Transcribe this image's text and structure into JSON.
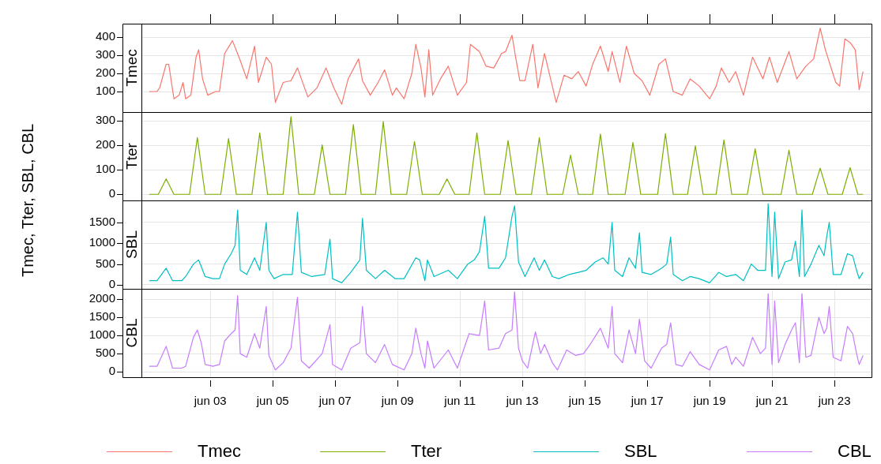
{
  "chart_data": [
    {
      "type": "line",
      "ylabel": "Tmec, Tter, SBL, CBL",
      "legend": "bottom",
      "grid": true,
      "tick_labels": "y",
      "xlim": [
        "--05-31T19:00",
        "--06-24T04:30"
      ],
      "ylim": [
        -13,
        474
      ],
      "yticks": [
        100,
        200,
        300,
        400
      ],
      "xticks": [
        {
          "value": "--06-03",
          "label": null
        },
        {
          "value": "--06-05",
          "label": null
        },
        {
          "value": "--06-07",
          "label": null
        },
        {
          "value": "--06-09",
          "label": null
        },
        {
          "value": "--06-11",
          "label": null
        },
        {
          "value": "--06-13",
          "label": null
        },
        {
          "value": "--06-15",
          "label": null
        },
        {
          "value": "--06-17",
          "label": null
        },
        {
          "value": "--06-19",
          "label": null
        },
        {
          "value": "--06-21",
          "label": null
        },
        {
          "value": "--06-23",
          "label": null
        }
      ],
      "x": [
        "--06-01T01:00",
        "--06-01T07:00",
        "--06-01T09:00",
        "--06-01T14:00",
        "--06-01T16:00",
        "--06-01T20:00",
        "--06-02T00:00",
        "--06-02T03:00",
        "--06-02T05:00",
        "--06-02T09:00",
        "--06-02T13:00",
        "--06-02T15:00",
        "--06-02T18:00",
        "--06-02T22:00",
        "--06-03T04:00",
        "--06-03T07:00",
        "--06-03T11:00",
        "--06-03T17:00",
        "--06-03T22:00",
        "--06-04T04:00",
        "--06-04T10:00",
        "--06-04T13:00",
        "--06-04T19:00",
        "--06-04T23:00",
        "--06-05T02:00",
        "--06-05T08:00",
        "--06-05T14:00",
        "--06-05T19:00",
        "--06-06T03:00",
        "--06-06T10:00",
        "--06-06T17:00",
        "--06-06T23:00",
        "--06-07T05:00",
        "--06-07T10:00",
        "--06-07T18:00",
        "--06-07T21:00",
        "--06-08T03:00",
        "--06-08T09:00",
        "--06-08T14:00",
        "--06-08T20:00",
        "--06-08T23:00",
        "--06-09T05:00",
        "--06-09T11:00",
        "--06-09T14:00",
        "--06-09T18:00",
        "--06-09T21:00",
        "--06-10T00:00",
        "--06-10T03:00",
        "--06-10T09:00",
        "--06-10T15:00",
        "--06-10T22:00",
        "--06-11T05:00",
        "--06-11T08:00",
        "--06-11T15:00",
        "--06-11T20:00",
        "--06-12T02:00",
        "--06-12T08:00",
        "--06-12T11:00",
        "--06-12T16:00",
        "--06-12T19:00",
        "--06-12T22:00",
        "--06-13T02:00",
        "--06-13T08:00",
        "--06-13T12:00",
        "--06-13T17:00",
        "--06-13T23:00",
        "--06-14T02:00",
        "--06-14T08:00",
        "--06-14T14:00",
        "--06-14T19:00",
        "--06-15T01:00",
        "--06-15T06:00",
        "--06-15T12:00",
        "--06-15T18:00",
        "--06-15T21:00",
        "--06-16T03:00",
        "--06-16T08:00",
        "--06-16T14:00",
        "--06-16T20:00",
        "--06-17T02:00",
        "--06-17T09:00",
        "--06-17T14:00",
        "--06-17T20:00",
        "--06-18T03:00",
        "--06-18T09:00",
        "--06-18T16:00",
        "--06-19T00:00",
        "--06-19T05:00",
        "--06-19T09:00",
        "--06-19T15:00",
        "--06-19T20:00",
        "--06-20T02:00",
        "--06-20T09:00",
        "--06-20T17:00",
        "--06-20T22:00",
        "--06-21T04:00",
        "--06-21T13:00",
        "--06-21T19:00",
        "--06-22T02:00",
        "--06-22T08:00",
        "--06-22T13:00",
        "--06-22T17:00",
        "--06-23T01:00",
        "--06-23T04:00",
        "--06-23T08:00",
        "--06-23T12:00",
        "--06-23T16:00",
        "--06-23T19:00",
        "--06-23T22:00"
      ],
      "series": [
        {
          "name": "Tmec",
          "color": "#f8766d",
          "values": [
            100,
            100,
            120,
            250,
            250,
            60,
            80,
            150,
            60,
            80,
            290,
            330,
            170,
            80,
            100,
            100,
            310,
            380,
            290,
            170,
            350,
            150,
            290,
            250,
            40,
            150,
            160,
            230,
            70,
            120,
            230,
            120,
            30,
            170,
            280,
            160,
            80,
            150,
            220,
            80,
            120,
            60,
            200,
            360,
            230,
            70,
            330,
            80,
            170,
            240,
            80,
            150,
            360,
            320,
            240,
            230,
            310,
            320,
            410,
            280,
            160,
            160,
            360,
            120,
            310,
            130,
            40,
            190,
            170,
            210,
            130,
            250,
            350,
            210,
            320,
            150,
            350,
            200,
            160,
            80,
            250,
            280,
            100,
            80,
            170,
            130,
            60,
            130,
            230,
            150,
            210,
            80,
            290,
            170,
            290,
            150,
            320,
            170,
            240,
            280,
            450,
            330,
            150,
            130,
            390,
            370,
            330,
            110,
            210
          ]
        }
      ]
    },
    {
      "type": "line",
      "legend": "bottom",
      "grid": true,
      "tick_labels": "y",
      "xlim": [
        "--05-31T19:00",
        "--06-24T04:30"
      ],
      "ylim": [
        -25,
        336
      ],
      "yticks": [
        0,
        100,
        200,
        300
      ],
      "xticks": [
        {
          "value": "--06-03",
          "label": null
        },
        {
          "value": "--06-05",
          "label": null
        },
        {
          "value": "--06-07",
          "label": null
        },
        {
          "value": "--06-09",
          "label": null
        },
        {
          "value": "--06-11",
          "label": null
        },
        {
          "value": "--06-13",
          "label": null
        },
        {
          "value": "--06-15",
          "label": null
        },
        {
          "value": "--06-17",
          "label": null
        },
        {
          "value": "--06-19",
          "label": null
        },
        {
          "value": "--06-21",
          "label": null
        },
        {
          "value": "--06-23",
          "label": null
        }
      ],
      "x": [
        "--06-01T01:00",
        "--06-01T08:00",
        "--06-01T14:00",
        "--06-01T20:00",
        "--06-02T08:00",
        "--06-02T14:00",
        "--06-02T20:00",
        "--06-03T08:00",
        "--06-03T14:00",
        "--06-03T20:00",
        "--06-04T08:00",
        "--06-04T14:00",
        "--06-04T20:00",
        "--06-05T08:00",
        "--06-05T14:00",
        "--06-05T20:00",
        "--06-06T08:00",
        "--06-06T14:00",
        "--06-06T20:00",
        "--06-07T08:00",
        "--06-07T14:00",
        "--06-07T20:00",
        "--06-08T07:00",
        "--06-08T13:00",
        "--06-08T19:00",
        "--06-09T07:00",
        "--06-09T13:00",
        "--06-09T19:00",
        "--06-10T08:00",
        "--06-10T14:00",
        "--06-10T20:00",
        "--06-11T07:00",
        "--06-11T13:00",
        "--06-11T19:00",
        "--06-12T07:00",
        "--06-12T13:00",
        "--06-12T19:00",
        "--06-13T07:00",
        "--06-13T13:00",
        "--06-13T19:00",
        "--06-14T07:00",
        "--06-14T13:00",
        "--06-14T19:00",
        "--06-15T06:00",
        "--06-15T12:00",
        "--06-15T18:00",
        "--06-16T07:00",
        "--06-16T13:00",
        "--06-16T19:00",
        "--06-17T08:00",
        "--06-17T14:00",
        "--06-17T20:00",
        "--06-18T07:00",
        "--06-18T13:00",
        "--06-18T19:00",
        "--06-19T05:00",
        "--06-19T11:00",
        "--06-19T17:00",
        "--06-20T05:00",
        "--06-20T11:00",
        "--06-20T17:00",
        "--06-21T07:00",
        "--06-21T13:00",
        "--06-21T19:00",
        "--06-22T07:00",
        "--06-22T13:00",
        "--06-22T19:00",
        "--06-23T06:00",
        "--06-23T12:00",
        "--06-23T18:00",
        "--06-23T22:00"
      ],
      "series": [
        {
          "name": "Tter",
          "color": "#7cae00",
          "values": [
            0,
            0,
            63,
            0,
            0,
            232,
            0,
            0,
            228,
            0,
            0,
            251,
            0,
            0,
            317,
            0,
            0,
            202,
            0,
            0,
            285,
            0,
            0,
            297,
            0,
            0,
            216,
            0,
            0,
            63,
            0,
            0,
            251,
            0,
            0,
            220,
            0,
            0,
            232,
            0,
            0,
            160,
            0,
            0,
            246,
            0,
            0,
            212,
            0,
            0,
            248,
            0,
            0,
            198,
            0,
            0,
            222,
            0,
            0,
            186,
            0,
            0,
            180,
            0,
            0,
            107,
            0,
            0,
            109,
            0,
            0
          ]
        }
      ]
    },
    {
      "type": "line",
      "legend": "bottom",
      "grid": true,
      "tick_labels": "y",
      "xlim": [
        "--05-31T19:00",
        "--06-24T04:30"
      ],
      "ylim": [
        -95,
        2030
      ],
      "yticks": [
        0,
        500,
        1000,
        1500
      ],
      "xticks": [
        {
          "value": "--06-03",
          "label": null
        },
        {
          "value": "--06-05",
          "label": null
        },
        {
          "value": "--06-07",
          "label": null
        },
        {
          "value": "--06-09",
          "label": null
        },
        {
          "value": "--06-11",
          "label": null
        },
        {
          "value": "--06-13",
          "label": null
        },
        {
          "value": "--06-15",
          "label": null
        },
        {
          "value": "--06-17",
          "label": null
        },
        {
          "value": "--06-19",
          "label": null
        },
        {
          "value": "--06-21",
          "label": null
        },
        {
          "value": "--06-23",
          "label": null
        }
      ],
      "x": [
        "--06-01T01:00",
        "--06-01T07:00",
        "--06-01T14:00",
        "--06-01T19:00",
        "--06-02T02:00",
        "--06-02T05:00",
        "--06-02T11:00",
        "--06-02T15:00",
        "--06-02T20:00",
        "--06-03T02:00",
        "--06-03T07:00",
        "--06-03T11:00",
        "--06-03T16:00",
        "--06-03T19:00",
        "--06-03T21:00",
        "--06-03T23:00",
        "--06-04T04:00",
        "--06-04T10:00",
        "--06-04T14:00",
        "--06-04T19:00",
        "--06-04T21:00",
        "--06-05T01:00",
        "--06-05T08:00",
        "--06-05T15:00",
        "--06-05T19:00",
        "--06-05T22:00",
        "--06-06T06:00",
        "--06-06T16:00",
        "--06-06T20:00",
        "--06-06T22:00",
        "--06-07T05:00",
        "--06-07T12:00",
        "--06-07T19:00",
        "--06-07T21:00",
        "--06-08T00:00",
        "--06-08T07:00",
        "--06-08T14:00",
        "--06-08T22:00",
        "--06-09T05:00",
        "--06-09T14:00",
        "--06-09T17:00",
        "--06-09T21:00",
        "--06-09T23:00",
        "--06-10T04:00",
        "--06-10T15:00",
        "--06-10T22:00",
        "--06-11T06:00",
        "--06-11T11:00",
        "--06-11T15:00",
        "--06-11T19:00",
        "--06-11T22:00",
        "--06-12T06:00",
        "--06-12T11:00",
        "--06-12T16:00",
        "--06-12T18:00",
        "--06-12T21:00",
        "--06-13T02:00",
        "--06-13T09:00",
        "--06-13T13:00",
        "--06-13T17:00",
        "--06-13T23:00",
        "--06-14T04:00",
        "--06-14T12:00",
        "--06-14T19:00",
        "--06-15T01:00",
        "--06-15T08:00",
        "--06-15T14:00",
        "--06-15T18:00",
        "--06-15T21:00",
        "--06-15T23:00",
        "--06-16T05:00",
        "--06-16T10:00",
        "--06-16T15:00",
        "--06-16T18:00",
        "--06-16T20:00",
        "--06-17T03:00",
        "--06-17T11:00",
        "--06-17T15:00",
        "--06-17T18:00",
        "--06-17T20:00",
        "--06-18T03:00",
        "--06-18T09:00",
        "--06-18T16:00",
        "--06-19T00:00",
        "--06-19T07:00",
        "--06-19T13:00",
        "--06-19T20:00",
        "--06-20T02:00",
        "--06-20T08:00",
        "--06-20T13:00",
        "--06-20T19:00",
        "--06-20T21:00",
        "--06-21T00:00",
        "--06-21T02:00",
        "--06-21T05:00",
        "--06-21T10:00",
        "--06-21T15:00",
        "--06-21T18:00",
        "--06-21T21:00",
        "--06-21T23:00",
        "--06-22T01:00",
        "--06-22T06:00",
        "--06-22T12:00",
        "--06-22T16:00",
        "--06-22T18:00",
        "--06-22T20:00",
        "--06-22T23:00",
        "--06-23T05:00",
        "--06-23T10:00",
        "--06-23T14:00",
        "--06-23T17:00",
        "--06-23T19:00",
        "--06-23T22:00"
      ],
      "series": [
        {
          "name": "SBL",
          "color": "#00bfc4",
          "values": [
            100,
            100,
            400,
            100,
            100,
            200,
            500,
            600,
            200,
            150,
            150,
            500,
            750,
            950,
            1800,
            350,
            250,
            650,
            350,
            1500,
            350,
            150,
            250,
            250,
            1750,
            300,
            200,
            250,
            1100,
            150,
            50,
            300,
            600,
            1600,
            350,
            150,
            350,
            150,
            150,
            650,
            600,
            100,
            600,
            200,
            350,
            150,
            500,
            600,
            800,
            1650,
            400,
            400,
            650,
            1650,
            1900,
            550,
            200,
            650,
            350,
            600,
            200,
            150,
            250,
            300,
            350,
            550,
            650,
            500,
            1500,
            350,
            200,
            650,
            400,
            1250,
            300,
            250,
            400,
            500,
            1150,
            250,
            100,
            200,
            150,
            50,
            300,
            200,
            250,
            100,
            500,
            350,
            350,
            1950,
            200,
            1750,
            150,
            550,
            600,
            1050,
            200,
            1800,
            200,
            500,
            950,
            700,
            1150,
            1500,
            250,
            250,
            750,
            700,
            350,
            150,
            300
          ]
        }
      ]
    },
    {
      "type": "line",
      "legend": "bottom",
      "grid": true,
      "xlim": [
        "--05-31T19:00",
        "--06-24T04:30"
      ],
      "ylim": [
        -150,
        2285
      ],
      "yticks": [
        0,
        500,
        1000,
        1500,
        2000
      ],
      "xticks": [
        {
          "value": "--06-03",
          "label": "jun 03"
        },
        {
          "value": "--06-05",
          "label": "jun 05"
        },
        {
          "value": "--06-07",
          "label": "jun 07"
        },
        {
          "value": "--06-09",
          "label": "jun 09"
        },
        {
          "value": "--06-11",
          "label": "jun 11"
        },
        {
          "value": "--06-13",
          "label": "jun 13"
        },
        {
          "value": "--06-15",
          "label": "jun 15"
        },
        {
          "value": "--06-17",
          "label": "jun 17"
        },
        {
          "value": "--06-19",
          "label": "jun 19"
        },
        {
          "value": "--06-21",
          "label": "jun 21"
        },
        {
          "value": "--06-23",
          "label": "jun 23"
        }
      ],
      "x": [
        "--06-01T01:00",
        "--06-01T07:00",
        "--06-01T14:00",
        "--06-01T19:00",
        "--06-02T02:00",
        "--06-02T05:00",
        "--06-02T11:00",
        "--06-02T14:00",
        "--06-02T17:00",
        "--06-02T20:00",
        "--06-03T02:00",
        "--06-03T07:00",
        "--06-03T11:00",
        "--06-03T16:00",
        "--06-03T19:00",
        "--06-03T21:00",
        "--06-03T23:00",
        "--06-04T04:00",
        "--06-04T10:00",
        "--06-04T14:00",
        "--06-04T19:00",
        "--06-04T21:00",
        "--06-05T02:00",
        "--06-05T08:00",
        "--06-05T14:00",
        "--06-05T19:00",
        "--06-05T22:00",
        "--06-06T04:00",
        "--06-06T14:00",
        "--06-06T20:00",
        "--06-06T22:00",
        "--06-07T05:00",
        "--06-07T12:00",
        "--06-07T19:00",
        "--06-07T21:00",
        "--06-08T00:00",
        "--06-08T07:00",
        "--06-08T14:00",
        "--06-08T20:00",
        "--06-09T05:00",
        "--06-09T11:00",
        "--06-09T14:00",
        "--06-09T18:00",
        "--06-09T21:00",
        "--06-09T23:00",
        "--06-10T04:00",
        "--06-10T15:00",
        "--06-10T22:00",
        "--06-11T07:00",
        "--06-11T15:00",
        "--06-11T19:00",
        "--06-11T22:00",
        "--06-12T06:00",
        "--06-12T11:00",
        "--06-12T16:00",
        "--06-12T18:00",
        "--06-12T21:00",
        "--06-13T00:00",
        "--06-13T04:00",
        "--06-13T10:00",
        "--06-13T14:00",
        "--06-13T17:00",
        "--06-13T23:00",
        "--06-14T03:00",
        "--06-14T10:00",
        "--06-14T17:00",
        "--06-14T23:00",
        "--06-15T05:00",
        "--06-15T12:00",
        "--06-15T18:00",
        "--06-15T21:00",
        "--06-15T23:00",
        "--06-16T05:00",
        "--06-16T10:00",
        "--06-16T15:00",
        "--06-16T18:00",
        "--06-16T22:00",
        "--06-17T03:00",
        "--06-17T11:00",
        "--06-17T15:00",
        "--06-17T18:00",
        "--06-17T22:00",
        "--06-18T03:00",
        "--06-18T09:00",
        "--06-18T16:00",
        "--06-19T00:00",
        "--06-19T07:00",
        "--06-19T13:00",
        "--06-19T17:00",
        "--06-19T20:00",
        "--06-20T02:00",
        "--06-20T09:00",
        "--06-20T15:00",
        "--06-20T19:00",
        "--06-20T21:00",
        "--06-21T00:00",
        "--06-21T02:00",
        "--06-21T05:00",
        "--06-21T10:00",
        "--06-21T15:00",
        "--06-21T18:00",
        "--06-21T21:00",
        "--06-21T23:00",
        "--06-22T02:00",
        "--06-22T06:00",
        "--06-22T12:00",
        "--06-22T16:00",
        "--06-22T18:00",
        "--06-22T20:00",
        "--06-22T23:00",
        "--06-23T05:00",
        "--06-23T10:00",
        "--06-23T14:00",
        "--06-23T17:00",
        "--06-23T19:00",
        "--06-23T22:00"
      ],
      "series": [
        {
          "name": "CBL",
          "color": "#c77cff",
          "values": [
            150,
            150,
            700,
            100,
            100,
            150,
            950,
            1150,
            800,
            200,
            150,
            200,
            850,
            1050,
            1150,
            2100,
            500,
            400,
            1050,
            650,
            1800,
            450,
            50,
            250,
            650,
            2050,
            300,
            100,
            500,
            1300,
            200,
            50,
            650,
            800,
            1800,
            500,
            250,
            750,
            200,
            50,
            500,
            1200,
            500,
            100,
            850,
            100,
            600,
            100,
            1050,
            1000,
            1950,
            600,
            650,
            1050,
            1150,
            2200,
            650,
            300,
            100,
            1100,
            500,
            750,
            250,
            50,
            600,
            450,
            500,
            800,
            1200,
            650,
            1800,
            500,
            250,
            1150,
            500,
            1450,
            300,
            100,
            650,
            750,
            1350,
            200,
            150,
            550,
            200,
            50,
            600,
            700,
            200,
            400,
            150,
            950,
            500,
            650,
            2150,
            200,
            1950,
            250,
            750,
            1150,
            1350,
            250,
            2150,
            400,
            450,
            1500,
            1050,
            1200,
            1800,
            400,
            300,
            1250,
            1050,
            500,
            200,
            450
          ]
        }
      ]
    }
  ]
}
